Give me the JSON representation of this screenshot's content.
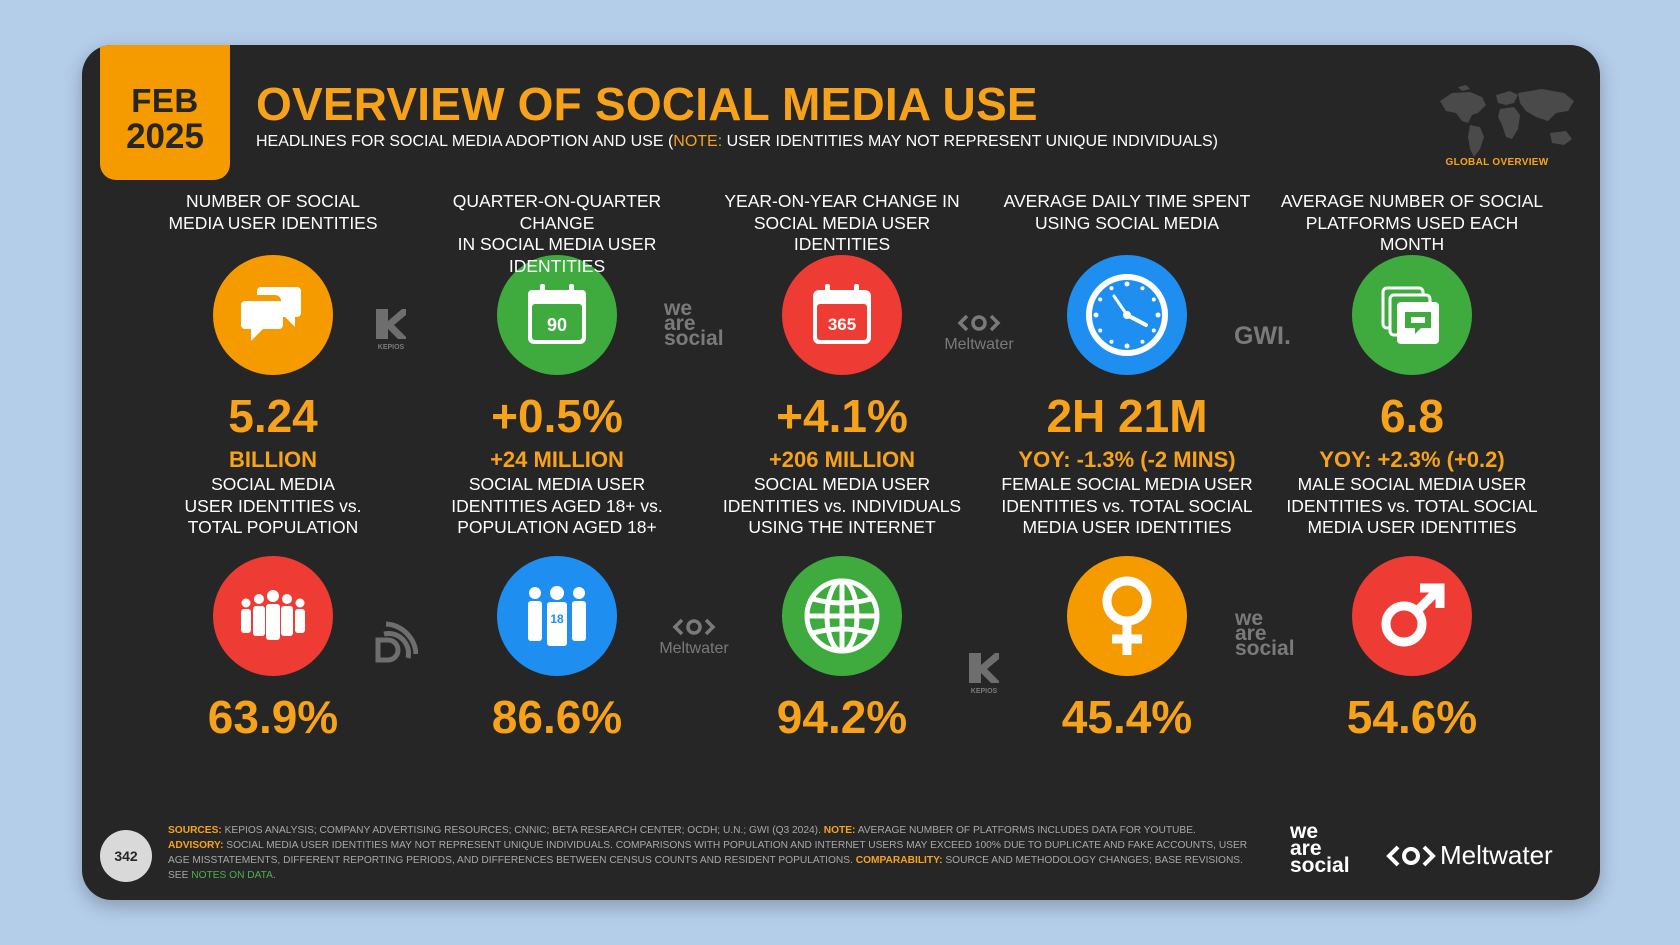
{
  "badge": {
    "month": "FEB",
    "year": "2025"
  },
  "header": {
    "title": "OVERVIEW OF SOCIAL MEDIA USE",
    "subtitle_before": "HEADLINES FOR SOCIAL MEDIA ADOPTION AND USE (",
    "subtitle_note": "NOTE:",
    "subtitle_after": " USER IDENTITIES MAY NOT REPRESENT UNIQUE INDIVIDUALS)",
    "region_label": "GLOBAL OVERVIEW"
  },
  "row1": [
    {
      "label": [
        "NUMBER OF SOCIAL",
        "MEDIA USER IDENTITIES"
      ],
      "value": "5.24",
      "sub": "BILLION",
      "icon": "speech-bubbles-icon",
      "color": "#f59b00"
    },
    {
      "label": [
        "QUARTER-ON-QUARTER CHANGE",
        "IN SOCIAL MEDIA USER IDENTITIES"
      ],
      "value": "+0.5%",
      "sub": "+24 MILLION",
      "icon": "calendar-90-icon",
      "icon_text": "90",
      "color": "#3fab3f"
    },
    {
      "label": [
        "YEAR-ON-YEAR CHANGE IN",
        "SOCIAL MEDIA USER IDENTITIES"
      ],
      "value": "+4.1%",
      "sub": "+206 MILLION",
      "icon": "calendar-365-icon",
      "icon_text": "365",
      "color": "#ee3b33"
    },
    {
      "label": [
        "AVERAGE DAILY TIME SPENT",
        "USING SOCIAL MEDIA"
      ],
      "value": "2H 21M",
      "sub": "YOY: -1.3% (-2 MINS)",
      "icon": "clock-icon",
      "color": "#1e8ff0"
    },
    {
      "label": [
        "AVERAGE NUMBER OF SOCIAL",
        "PLATFORMS USED EACH MONTH"
      ],
      "value": "6.8",
      "sub": "YOY: +2.3% (+0.2)",
      "icon": "stacked-windows-icon",
      "color": "#3fab3f"
    }
  ],
  "row2": [
    {
      "label": [
        "SOCIAL MEDIA",
        "USER IDENTITIES vs.",
        "TOTAL POPULATION"
      ],
      "value": "63.9%",
      "icon": "population-icon",
      "color": "#ee3b33"
    },
    {
      "label": [
        "SOCIAL MEDIA USER",
        "IDENTITIES AGED 18+ vs.",
        "POPULATION AGED 18+"
      ],
      "value": "86.6%",
      "icon": "adults-18-icon",
      "icon_text": "18",
      "color": "#1e8ff0"
    },
    {
      "label": [
        "SOCIAL MEDIA USER",
        "IDENTITIES vs. INDIVIDUALS",
        "USING THE INTERNET"
      ],
      "value": "94.2%",
      "icon": "globe-icon",
      "color": "#3fab3f"
    },
    {
      "label": [
        "FEMALE SOCIAL MEDIA USER",
        "IDENTITIES vs. TOTAL SOCIAL",
        "MEDIA USER IDENTITIES"
      ],
      "value": "45.4%",
      "icon": "female-icon",
      "color": "#f59b00"
    },
    {
      "label": [
        "MALE SOCIAL MEDIA USER",
        "IDENTITIES vs. TOTAL SOCIAL",
        "MEDIA USER IDENTITIES"
      ],
      "value": "54.6%",
      "icon": "male-icon",
      "color": "#ee3b33"
    }
  ],
  "watermarks": {
    "kepios": "KEPIOS",
    "was": [
      "we",
      "are",
      "social"
    ],
    "meltwater": "Meltwater",
    "gwi": "GWI."
  },
  "footer": {
    "page_number": "342",
    "sources_key": "SOURCES:",
    "sources_text": " KEPIOS ANALYSIS; COMPANY ADVERTISING RESOURCES; CNNIC; BETA RESEARCH CENTER; OCDH; U.N.; GWI (Q3 2024). ",
    "note_key": "NOTE:",
    "note_text": " AVERAGE NUMBER OF PLATFORMS INCLUDES DATA FOR YOUTUBE.",
    "advisory_key": "ADVISORY:",
    "advisory_text": " SOCIAL MEDIA USER IDENTITIES MAY NOT REPRESENT UNIQUE INDIVIDUALS. COMPARISONS WITH POPULATION AND INTERNET USERS MAY EXCEED 100% DUE TO DUPLICATE AND FAKE ACCOUNTS, USER AGE MISSTATEMENTS, DIFFERENT REPORTING PERIODS, AND DIFFERENCES BETWEEN CENSUS COUNTS AND RESIDENT POPULATIONS. ",
    "comparability_key": "COMPARABILITY:",
    "comparability_text": " SOURCE AND METHODOLOGY CHANGES; BASE REVISIONS. SEE ",
    "link_text": "NOTES ON DATA",
    "link_end": ".",
    "brand_was": [
      "we",
      "are",
      "social"
    ],
    "brand_mw": "Meltwater"
  }
}
